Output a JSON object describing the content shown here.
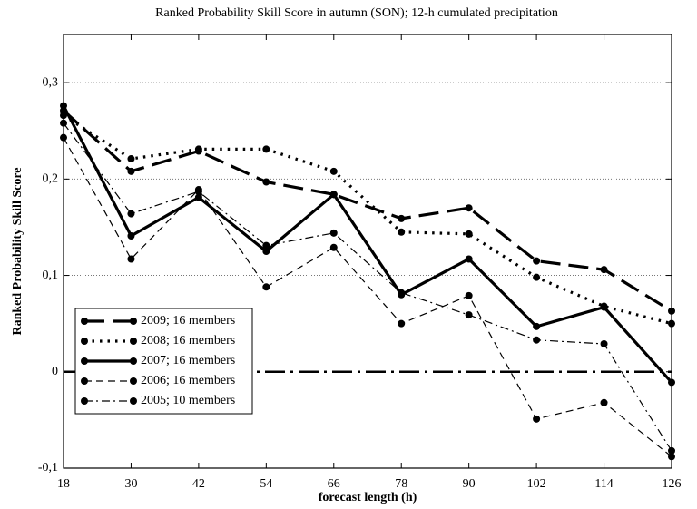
{
  "chart_data": {
    "type": "line",
    "title": "Ranked Probability Skill Score in autumn (SON); 12-h cumulated precipitation",
    "xlabel": "forecast length (h)",
    "ylabel": "Ranked Probability Skill Score",
    "x": [
      18,
      30,
      42,
      54,
      66,
      78,
      90,
      102,
      114,
      126
    ],
    "xlim": [
      18,
      126
    ],
    "xticks": [
      18,
      30,
      42,
      54,
      66,
      78,
      90,
      102,
      114,
      126
    ],
    "ylim": [
      -0.1,
      0.35
    ],
    "yticks": [
      {
        "value": -0.1,
        "label": "-0,1"
      },
      0,
      {
        "value": 0.1,
        "label": "0,1"
      },
      {
        "value": 0.2,
        "label": "0,2"
      },
      {
        "value": 0.3,
        "label": "0,3"
      }
    ],
    "grid": true,
    "legend": "lower left",
    "series": [
      {
        "name": "2009; 16 members",
        "color": "#000000",
        "linestyle": "long-dash",
        "values": [
          0.271,
          0.208,
          0.229,
          0.197,
          0.184,
          0.159,
          0.17,
          0.115,
          0.106,
          0.063
        ]
      },
      {
        "name": "2008; 16 members",
        "color": "#000000",
        "linestyle": "dotted",
        "values": [
          0.266,
          0.221,
          0.231,
          0.231,
          0.208,
          0.145,
          0.143,
          0.098,
          0.068,
          0.05
        ]
      },
      {
        "name": "2007; 16 members",
        "color": "#000000",
        "linestyle": "solid",
        "values": [
          0.276,
          0.141,
          0.181,
          0.125,
          0.184,
          0.08,
          0.117,
          0.047,
          0.067,
          -0.011
        ]
      },
      {
        "name": "2006; 16 members",
        "color": "#000000",
        "linestyle": "dashed",
        "values": [
          0.243,
          0.117,
          0.189,
          0.088,
          0.129,
          0.05,
          0.079,
          -0.049,
          -0.032,
          -0.088
        ]
      },
      {
        "name": "2005; 10 members",
        "color": "#000000",
        "linestyle": "dash-dot",
        "values": [
          0.258,
          0.164,
          0.187,
          0.131,
          0.144,
          0.082,
          0.059,
          0.033,
          0.029,
          -0.082
        ]
      }
    ]
  }
}
